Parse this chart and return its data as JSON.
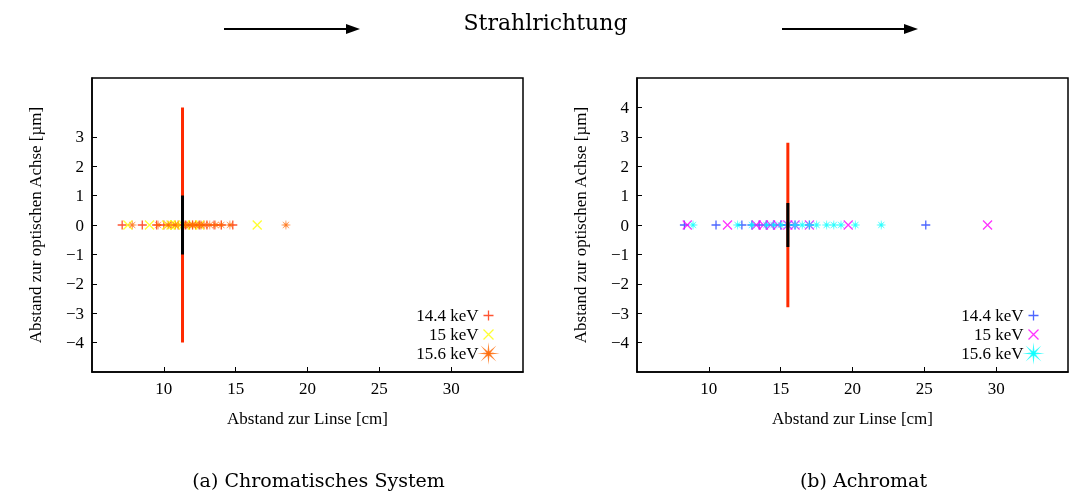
{
  "chart_data": [
    {
      "type": "scatter",
      "title": "Strahlrichtung",
      "xlabel": "Abstand zur Linse [cm]",
      "ylabel": "Abstand zur optischen Achse [µm]",
      "annotations": [
        "(a) Chromatisches System"
      ],
      "xlim": [
        5,
        35
      ],
      "xticks": [
        10,
        15,
        20,
        25,
        30
      ],
      "ylim": [
        -5,
        5
      ],
      "yticks": [
        -4,
        -3,
        -2,
        -1,
        0,
        1,
        2,
        3
      ],
      "legend": "bottom right",
      "series": [
        {
          "name": "14.4 keV",
          "color": "#ff2a00",
          "marker": "plus",
          "x": [
            7.1,
            8.5,
            9.5,
            10,
            10.5,
            11,
            11.5,
            12,
            12.5,
            13,
            13.5,
            14,
            14.8
          ],
          "values": [
            0,
            0,
            0,
            0,
            0,
            0,
            0,
            0,
            0,
            0,
            0,
            0,
            0
          ]
        },
        {
          "name": "15 keV",
          "color": "#ffff00",
          "marker": "cross",
          "x": [
            7.5,
            9,
            10.2,
            10.5,
            10.8,
            11,
            11.5,
            12,
            12.5,
            16.5
          ],
          "values": [
            0,
            0,
            0,
            0,
            0,
            0,
            0,
            0,
            0,
            0
          ]
        },
        {
          "name": "15.6 keV",
          "color": "#ff6600",
          "marker": "star",
          "x": [
            7.8,
            9.6,
            10.3,
            10.8,
            11.4,
            11.6,
            11.8,
            12,
            12.2,
            12.4,
            12.6,
            12.8,
            13.2,
            13.6,
            14,
            14.6,
            18.5
          ],
          "values": [
            0,
            0,
            0,
            0,
            0,
            0,
            0,
            0,
            0,
            0,
            0,
            0,
            0,
            0,
            0,
            0,
            0
          ]
        },
        {
          "type": "line",
          "color": "#ff2a00",
          "marker": "none",
          "x": [
            11.3,
            11.3
          ],
          "values": [
            -4,
            4
          ]
        },
        {
          "type": "line",
          "color": "#000000",
          "marker": "none",
          "x": [
            11.3,
            11.3
          ],
          "values": [
            -1,
            1
          ]
        }
      ]
    },
    {
      "type": "scatter",
      "xlabel": "Abstand zur Linse [cm]",
      "ylabel": "Abstand zur optischen Achse [µm]",
      "annotations": [
        "(b) Achromat"
      ],
      "xlim": [
        5,
        35
      ],
      "xticks": [
        10,
        15,
        20,
        25,
        30
      ],
      "ylim": [
        -5,
        5
      ],
      "yticks": [
        -4,
        -3,
        -2,
        -1,
        0,
        1,
        2,
        3,
        4
      ],
      "legend": "bottom right",
      "series": [
        {
          "name": "14.4 keV",
          "color": "#2040ff",
          "marker": "plus",
          "x": [
            8.3,
            10.5,
            12.3,
            13,
            13.5,
            14,
            14.5,
            15,
            15.5,
            16,
            17,
            25.1
          ],
          "values": [
            0,
            0,
            0,
            0,
            0,
            0,
            0,
            0,
            0,
            0,
            0,
            0
          ]
        },
        {
          "name": "15 keV",
          "color": "#ff00ff",
          "marker": "cross",
          "x": [
            8.5,
            11.3,
            13.3,
            13.8,
            14.3,
            14.8,
            15.5,
            16,
            17,
            19.7,
            29.4
          ],
          "values": [
            0,
            0,
            0,
            0,
            0,
            0,
            0,
            0,
            0,
            0,
            0
          ]
        },
        {
          "name": "15.6 keV",
          "color": "#00ffff",
          "marker": "star",
          "x": [
            8.9,
            12,
            13,
            14,
            14.5,
            15,
            15.5,
            16,
            16.5,
            17,
            17.5,
            18.2,
            18.7,
            19.2,
            20.2,
            22
          ],
          "values": [
            0,
            0,
            0,
            0,
            0,
            0,
            0,
            0,
            0,
            0,
            0,
            0,
            0,
            0,
            0,
            0
          ]
        },
        {
          "type": "line",
          "color": "#ff2a00",
          "marker": "none",
          "x": [
            15.5,
            15.5
          ],
          "values": [
            -2.8,
            2.8
          ]
        },
        {
          "type": "line",
          "color": "#000000",
          "marker": "none",
          "x": [
            15.5,
            15.5
          ],
          "values": [
            -0.75,
            0.75
          ]
        }
      ]
    }
  ]
}
